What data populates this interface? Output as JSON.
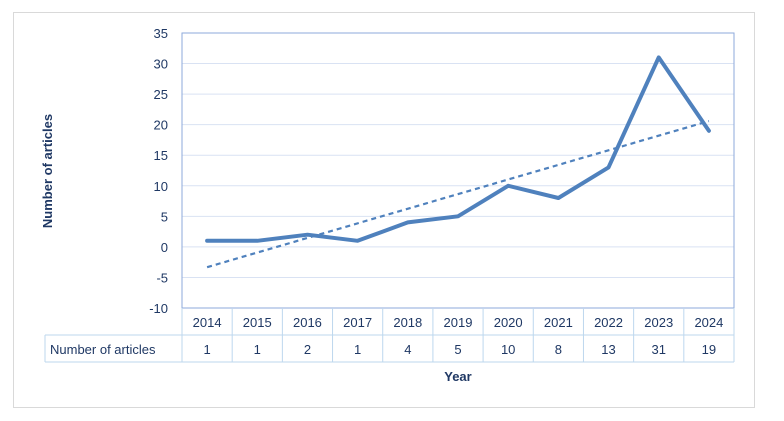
{
  "chart_data": {
    "type": "line",
    "title": "",
    "xlabel": "Year",
    "ylabel": "Number of articles",
    "ylim": [
      -10,
      35
    ],
    "yticks": [
      35,
      30,
      25,
      20,
      15,
      10,
      5,
      0,
      -5,
      -10
    ],
    "grid": true,
    "categories": [
      "2014",
      "2015",
      "2016",
      "2017",
      "2018",
      "2019",
      "2020",
      "2021",
      "2022",
      "2023",
      "2024"
    ],
    "series": [
      {
        "name": "Number of articles",
        "values": [
          1,
          1,
          2,
          1,
          4,
          5,
          10,
          8,
          13,
          31,
          19
        ],
        "color": "#4f81bd"
      }
    ],
    "trendline": {
      "type": "linear",
      "style": "dashed",
      "color": "#4f81bd"
    },
    "data_table": true
  },
  "colors": {
    "series": "#4f81bd",
    "text": "#1f3864",
    "grid": "#d9e2f3",
    "plot_border": "#8eaadb",
    "table_border": "#bdd7ee"
  }
}
